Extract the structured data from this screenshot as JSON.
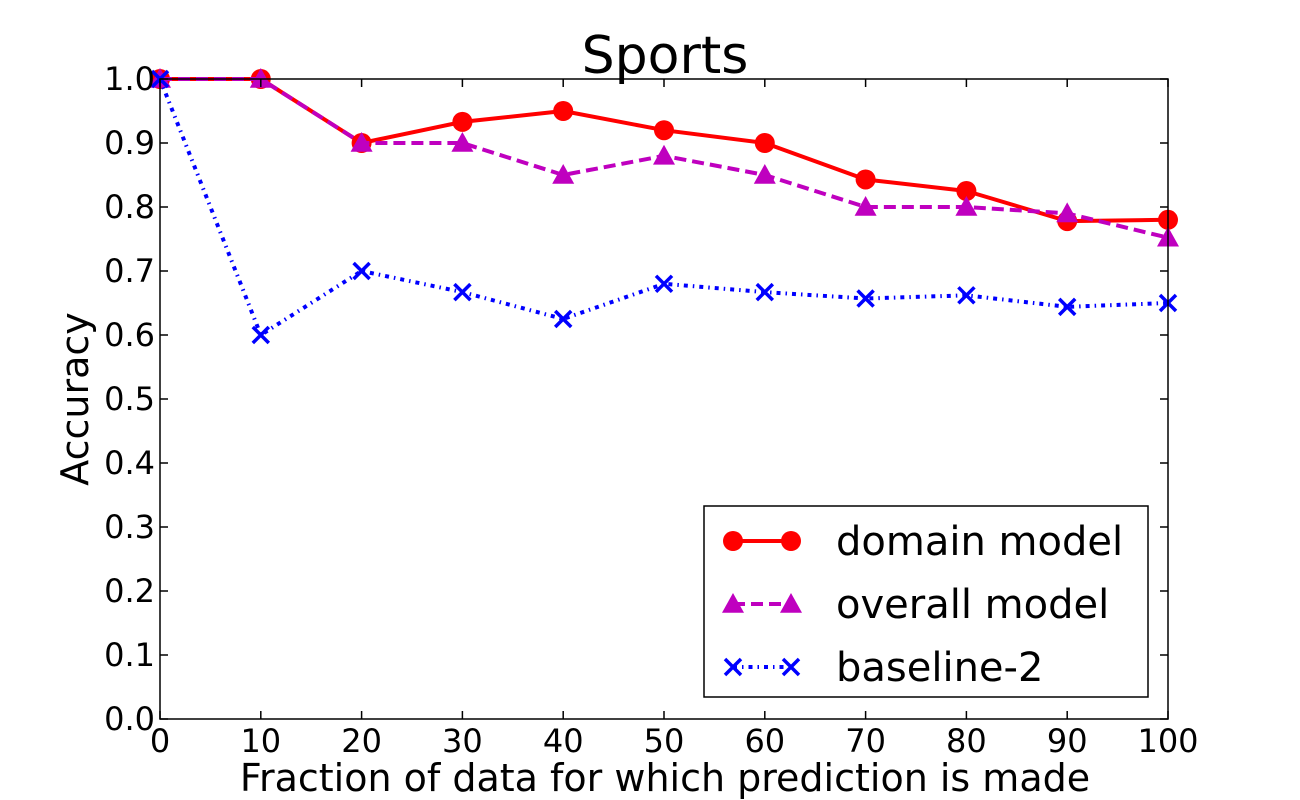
{
  "chart_data": {
    "type": "line",
    "title": "Sports",
    "xlabel": "Fraction of data for which prediction is made",
    "ylabel": "Accuracy",
    "xlim": [
      0,
      100
    ],
    "ylim": [
      0.0,
      1.0
    ],
    "x": [
      0,
      10,
      20,
      30,
      40,
      50,
      60,
      70,
      80,
      90,
      100
    ],
    "xticks": [
      "0",
      "10",
      "20",
      "30",
      "40",
      "50",
      "60",
      "70",
      "80",
      "90",
      "100"
    ],
    "yticks": [
      "0.0",
      "0.1",
      "0.2",
      "0.3",
      "0.4",
      "0.5",
      "0.6",
      "0.7",
      "0.8",
      "0.9",
      "1.0"
    ],
    "grid": false,
    "legend_position": "lower-right",
    "series": [
      {
        "name": "domain model",
        "color": "#ff0000",
        "marker": "circle",
        "linestyle": "solid",
        "values": [
          1.0,
          1.0,
          0.9,
          0.933,
          0.95,
          0.92,
          0.9,
          0.843,
          0.825,
          0.778,
          0.78
        ]
      },
      {
        "name": "overall model",
        "color": "#bf00bf",
        "marker": "triangle",
        "linestyle": "dashed",
        "values": [
          1.0,
          1.0,
          0.9,
          0.9,
          0.85,
          0.88,
          0.85,
          0.8,
          0.8,
          0.79,
          0.752
        ]
      },
      {
        "name": "baseline-2",
        "color": "#0000ff",
        "marker": "x",
        "linestyle": "dashdot",
        "values": [
          1.0,
          0.6,
          0.7,
          0.667,
          0.625,
          0.68,
          0.667,
          0.657,
          0.662,
          0.644,
          0.65
        ]
      }
    ]
  }
}
